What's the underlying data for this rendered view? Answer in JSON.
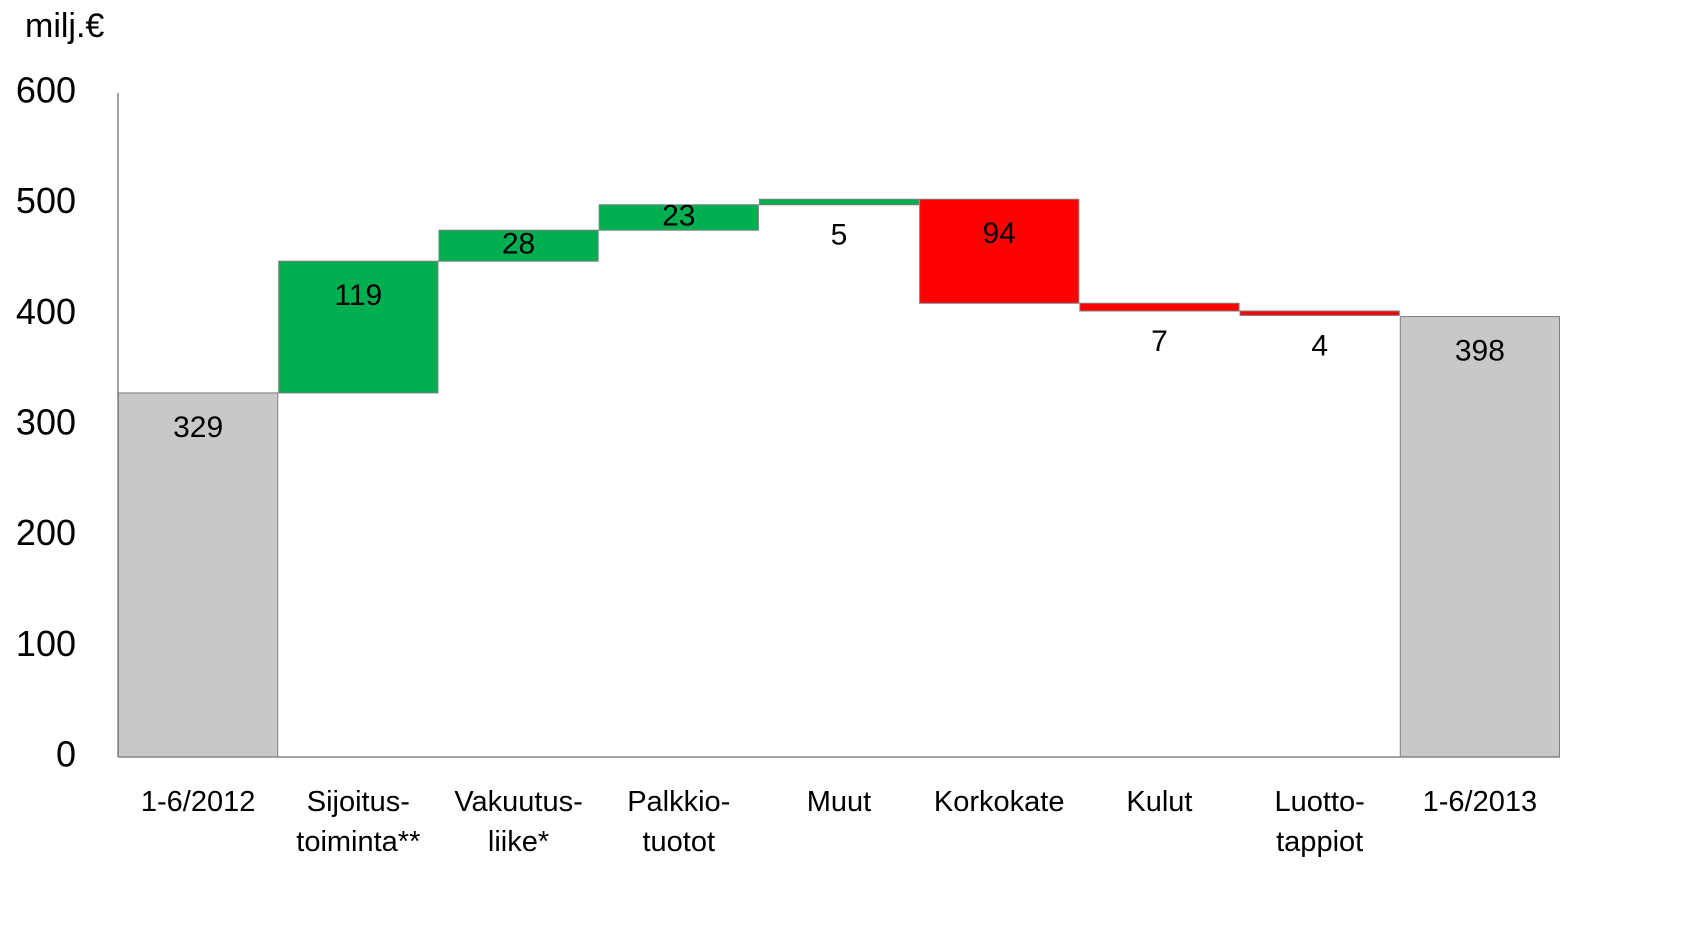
{
  "chart_data": {
    "type": "waterfall",
    "y_axis_label": "milj.€",
    "categories": [
      [
        "1-6/2012"
      ],
      [
        "Sijoitus-",
        "toiminta**"
      ],
      [
        "Vakuutus-",
        "liike*"
      ],
      [
        "Palkkio-",
        "tuotot"
      ],
      [
        "Muut"
      ],
      [
        "Korkokate"
      ],
      [
        "Kulut"
      ],
      [
        "Luotto-",
        "tappiot"
      ],
      [
        "1-6/2013"
      ]
    ],
    "measure": [
      "absolute",
      "relative",
      "relative",
      "relative",
      "relative",
      "relative",
      "relative",
      "relative",
      "absolute"
    ],
    "values": [
      329,
      119,
      28,
      23,
      5,
      -94,
      -7,
      -4,
      398
    ],
    "value_labels": [
      "329",
      "119",
      "28",
      "23",
      "5",
      "94",
      "7",
      "4",
      "398"
    ],
    "colors": {
      "total": "#c8c8c8",
      "increase": "#00b050",
      "decrease": "#ff0000"
    },
    "ylim": [
      0,
      600
    ],
    "yticks": [
      0,
      100,
      200,
      300,
      400,
      500,
      600
    ],
    "grid": false
  }
}
